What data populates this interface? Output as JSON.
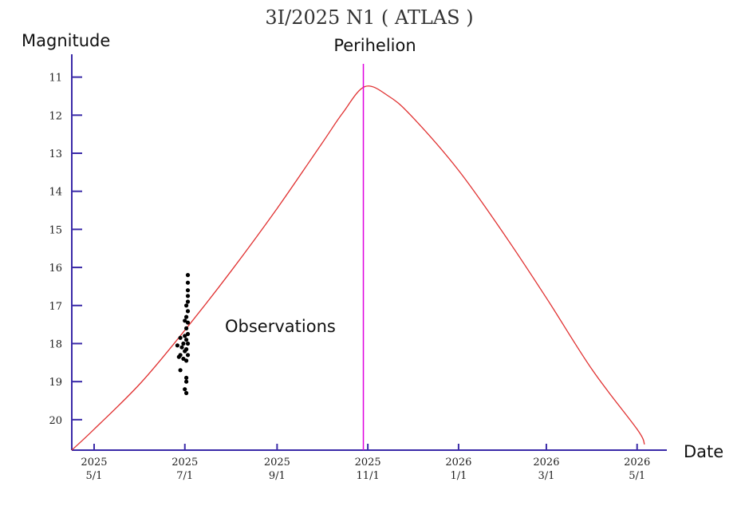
{
  "chart_data": {
    "type": "line",
    "title": "3I/2025 N1 ( ATLAS )",
    "ylabel": "Magnitude",
    "xlabel": "Date",
    "y_inverted": true,
    "ylim": [
      10.4,
      20.8
    ],
    "xlim": [
      "2025-04-16",
      "2026-05-21"
    ],
    "y_ticks": [
      11,
      12,
      13,
      14,
      15,
      16,
      17,
      18,
      19,
      20
    ],
    "x_ticks": [
      {
        "date": "2025-05-01",
        "year": "2025",
        "md": "5/1"
      },
      {
        "date": "2025-07-01",
        "year": "2025",
        "md": "7/1"
      },
      {
        "date": "2025-09-01",
        "year": "2025",
        "md": "9/1"
      },
      {
        "date": "2025-11-01",
        "year": "2025",
        "md": "11/1"
      },
      {
        "date": "2026-01-01",
        "year": "2026",
        "md": "1/1"
      },
      {
        "date": "2026-03-01",
        "year": "2026",
        "md": "3/1"
      },
      {
        "date": "2026-05-01",
        "year": "2026",
        "md": "5/1"
      }
    ],
    "grid": false,
    "predicted_curve": {
      "color": "#e03030",
      "points": [
        {
          "date": "2025-04-16",
          "mag": 20.8
        },
        {
          "date": "2025-05-01",
          "mag": 20.25
        },
        {
          "date": "2025-06-01",
          "mag": 19.05
        },
        {
          "date": "2025-07-01",
          "mag": 17.65
        },
        {
          "date": "2025-08-01",
          "mag": 16.1
        },
        {
          "date": "2025-09-01",
          "mag": 14.45
        },
        {
          "date": "2025-10-01",
          "mag": 12.75
        },
        {
          "date": "2025-10-15",
          "mag": 11.95
        },
        {
          "date": "2025-10-30",
          "mag": 11.25
        },
        {
          "date": "2025-11-15",
          "mag": 11.5
        },
        {
          "date": "2025-12-01",
          "mag": 12.05
        },
        {
          "date": "2026-01-01",
          "mag": 13.45
        },
        {
          "date": "2026-02-01",
          "mag": 15.15
        },
        {
          "date": "2026-03-01",
          "mag": 16.8
        },
        {
          "date": "2026-04-01",
          "mag": 18.7
        },
        {
          "date": "2026-05-01",
          "mag": 20.25
        },
        {
          "date": "2026-05-06",
          "mag": 20.65
        }
      ]
    },
    "perihelion": {
      "date": "2025-10-29",
      "label": "Perihelion",
      "color": "#e000e0"
    },
    "observations": {
      "label": "Observations",
      "color": "#000000",
      "points": [
        {
          "date": "2025-07-03",
          "mag": 16.2
        },
        {
          "date": "2025-07-03",
          "mag": 16.4
        },
        {
          "date": "2025-07-03",
          "mag": 16.6
        },
        {
          "date": "2025-07-03",
          "mag": 16.75
        },
        {
          "date": "2025-07-03",
          "mag": 16.9
        },
        {
          "date": "2025-07-02",
          "mag": 17.0
        },
        {
          "date": "2025-07-03",
          "mag": 17.15
        },
        {
          "date": "2025-07-02",
          "mag": 17.3
        },
        {
          "date": "2025-07-03",
          "mag": 17.45
        },
        {
          "date": "2025-07-02",
          "mag": 17.6
        },
        {
          "date": "2025-07-03",
          "mag": 17.75
        },
        {
          "date": "2025-07-02",
          "mag": 17.9
        },
        {
          "date": "2025-07-03",
          "mag": 18.0
        },
        {
          "date": "2025-07-02",
          "mag": 18.15
        },
        {
          "date": "2025-07-03",
          "mag": 18.3
        },
        {
          "date": "2025-07-02",
          "mag": 18.45
        },
        {
          "date": "2025-07-01",
          "mag": 17.4
        },
        {
          "date": "2025-07-01",
          "mag": 17.8
        },
        {
          "date": "2025-07-01",
          "mag": 18.2
        },
        {
          "date": "2025-06-30",
          "mag": 18.0
        },
        {
          "date": "2025-06-28",
          "mag": 17.85
        },
        {
          "date": "2025-06-28",
          "mag": 18.3
        },
        {
          "date": "2025-06-29",
          "mag": 18.1
        },
        {
          "date": "2025-06-26",
          "mag": 18.05
        },
        {
          "date": "2025-06-27",
          "mag": 18.35
        },
        {
          "date": "2025-06-30",
          "mag": 18.4
        },
        {
          "date": "2025-06-28",
          "mag": 18.7
        },
        {
          "date": "2025-07-02",
          "mag": 18.9
        },
        {
          "date": "2025-07-02",
          "mag": 19.0
        },
        {
          "date": "2025-07-01",
          "mag": 19.2
        },
        {
          "date": "2025-07-02",
          "mag": 19.3
        }
      ]
    }
  }
}
